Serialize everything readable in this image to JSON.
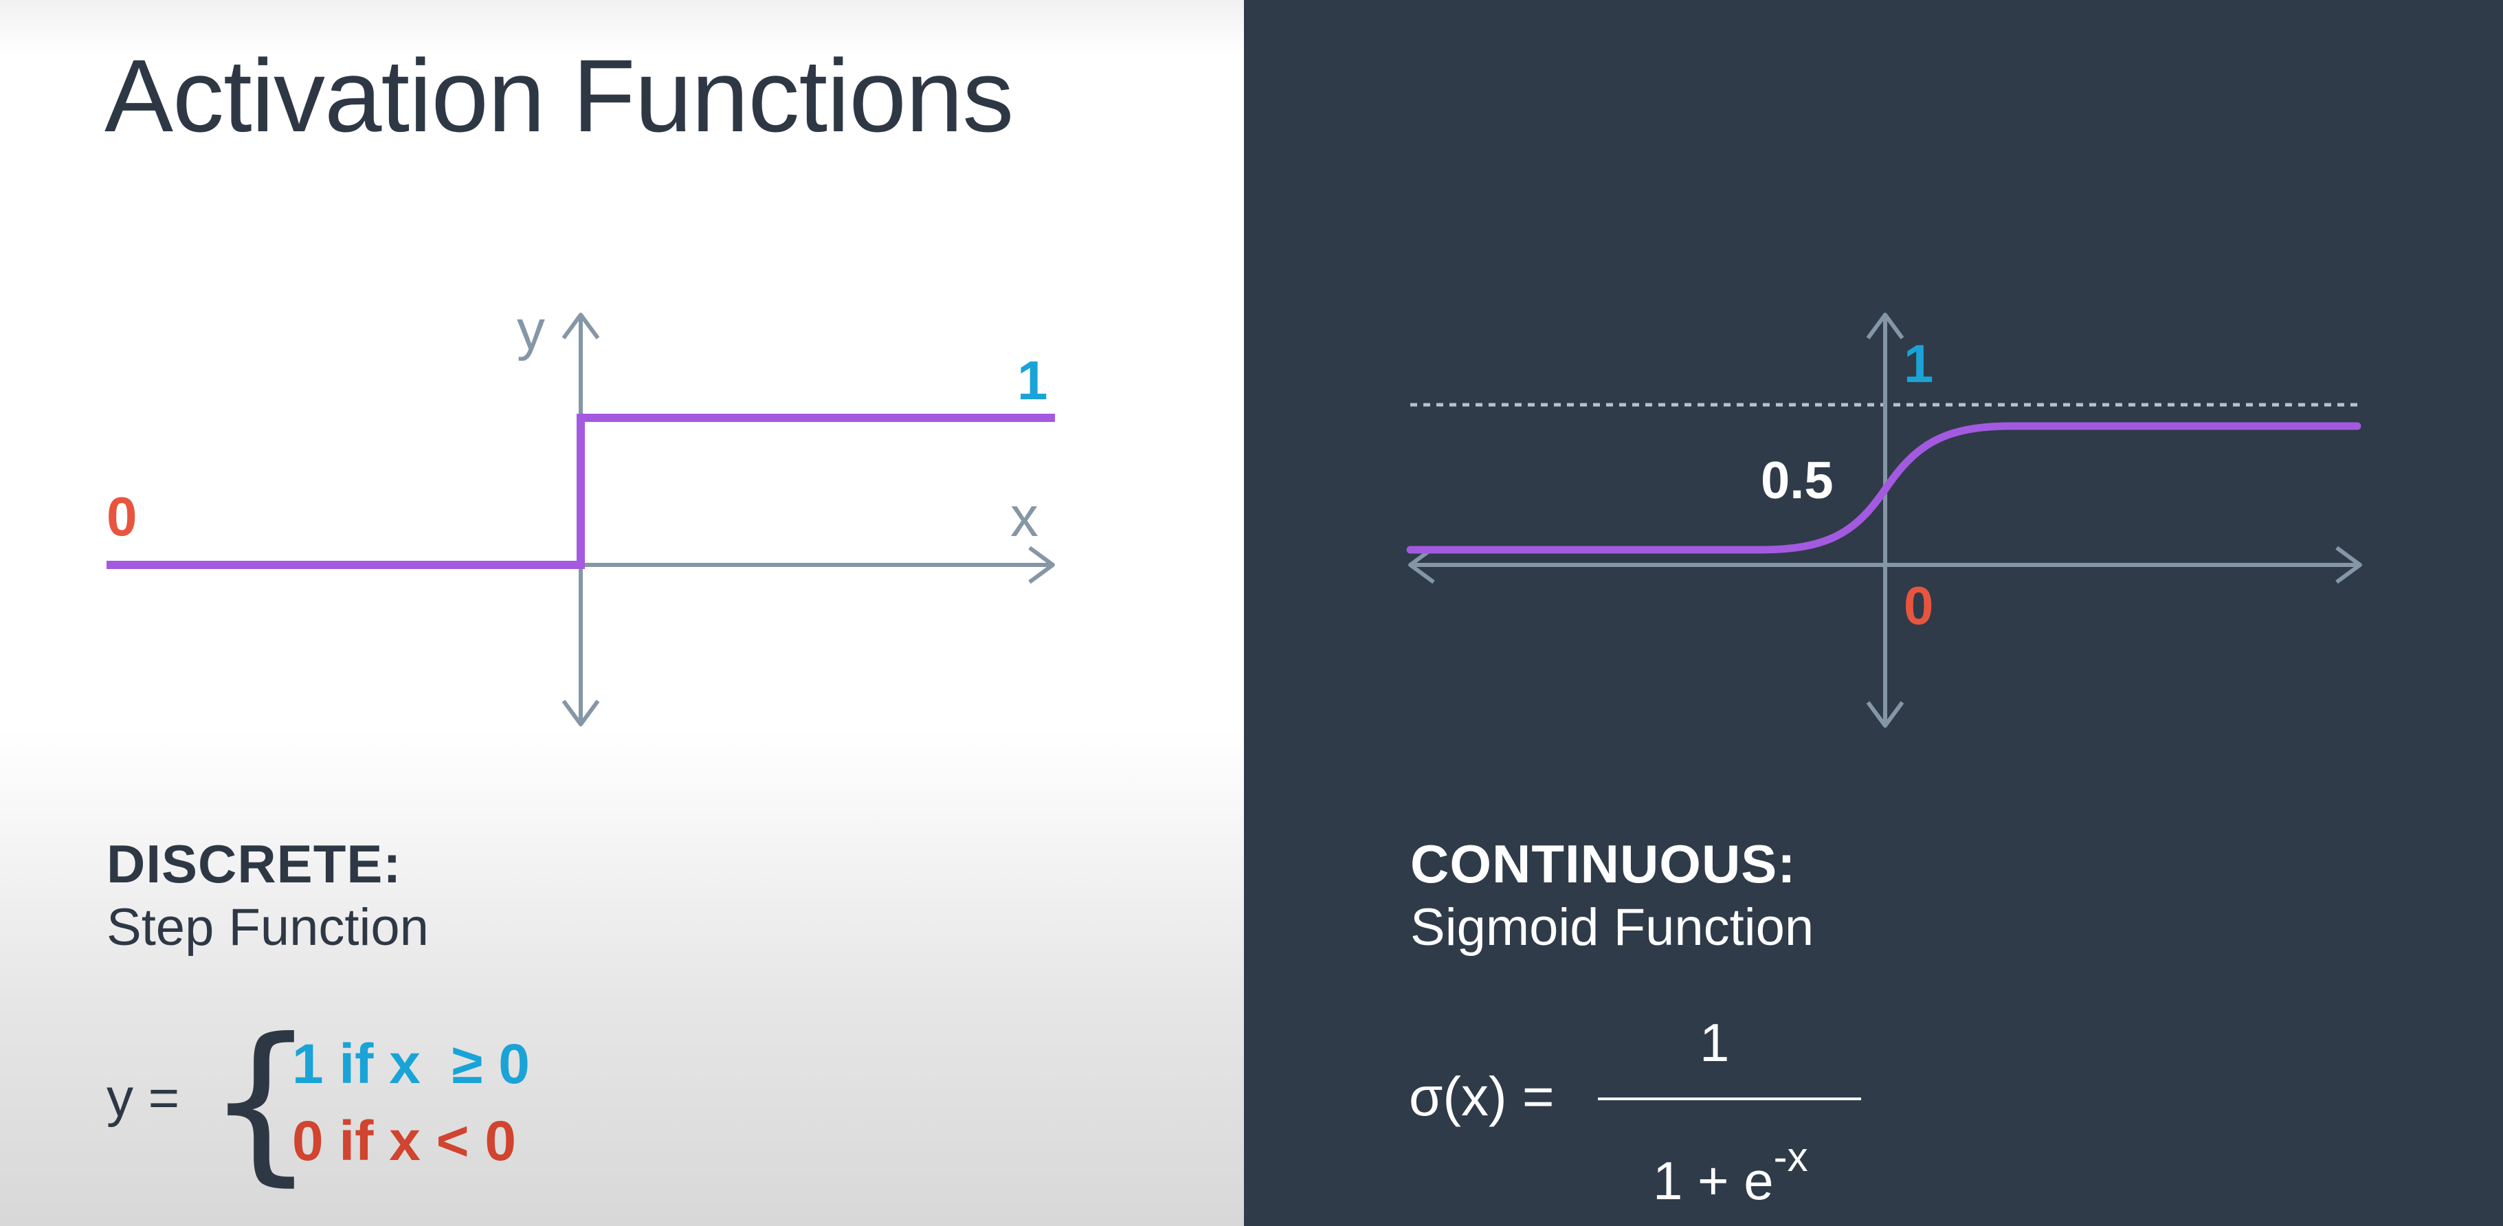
{
  "slide": {
    "title": "Activation Functions"
  },
  "discrete": {
    "header": "DISCRETE:",
    "subtitle": "Step Function",
    "axis_y": "y",
    "axis_x": "x",
    "label_high": "1",
    "label_low": "0",
    "formula": {
      "lhs": "y =",
      "brace": "{",
      "case1": "1 if x  ≥ 0",
      "case2": "0 if x < 0"
    }
  },
  "continuous": {
    "header": "CONTINUOUS:",
    "subtitle": "Sigmoid Function",
    "label_high": "1",
    "label_mid": "0.5",
    "label_low": "0",
    "formula": {
      "lhs": "σ(x) =",
      "numerator": "1",
      "denominator": "1 + e",
      "exponent": "-x"
    }
  },
  "colors": {
    "curve": "#a35ae0",
    "axis": "#8596a6",
    "high_label": "#1aa3d6",
    "low_label": "#e8553f"
  }
}
